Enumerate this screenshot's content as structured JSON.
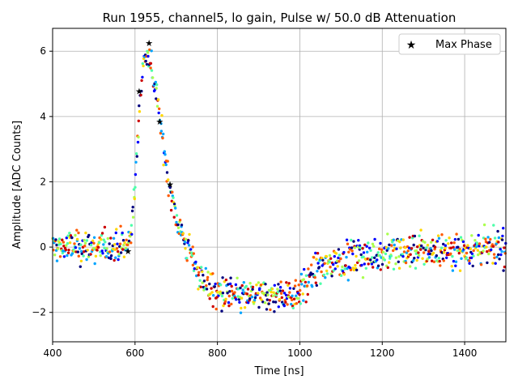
{
  "chart_data": {
    "type": "scatter",
    "title": "Run 1955, channel5, lo gain, Pulse w/ 50.0 dB Attenuation",
    "xlabel": "Time [ns]",
    "ylabel": "Amplitude [ADC Counts]",
    "xlim": [
      400,
      1500
    ],
    "ylim": [
      -2.9,
      6.7
    ],
    "xticks": [
      400,
      600,
      800,
      1000,
      1200,
      1400
    ],
    "yticks": [
      -2,
      0,
      2,
      4,
      6
    ],
    "grid": true,
    "legend": {
      "position": "top-right",
      "entries": [
        "Max Phase"
      ]
    },
    "colormap": [
      "#00007f",
      "#0000ff",
      "#00a4ff",
      "#4dffaa",
      "#aaff4d",
      "#ffd700",
      "#ff5a00",
      "#cc0000"
    ],
    "scatter_note": "many colored samples overlaid; pulse shape rises ~590 ns, peaks ~6.2 at ~635 ns, undershoot ~-1.5 around 850-980 ns, returns to 0",
    "pulse_profile": {
      "x": [
        400,
        580,
        590,
        600,
        610,
        620,
        630,
        640,
        650,
        660,
        670,
        680,
        690,
        700,
        720,
        740,
        760,
        780,
        800,
        850,
        900,
        950,
        990,
        1000,
        1030,
        1050,
        1100,
        1200,
        1300,
        1400,
        1500
      ],
      "y": [
        0.0,
        0.0,
        0.4,
        1.8,
        4.2,
        5.6,
        6.0,
        5.5,
        4.8,
        4.0,
        3.0,
        2.2,
        1.5,
        0.9,
        0.2,
        -0.4,
        -0.9,
        -1.2,
        -1.4,
        -1.5,
        -1.5,
        -1.5,
        -1.4,
        -1.3,
        -0.9,
        -0.6,
        -0.4,
        -0.2,
        -0.1,
        -0.05,
        0.0
      ]
    },
    "max_phase": {
      "name": "Max Phase",
      "x": [
        583,
        610,
        634,
        660,
        685
      ],
      "y": [
        -0.12,
        4.78,
        6.25,
        3.85,
        1.92
      ]
    }
  }
}
